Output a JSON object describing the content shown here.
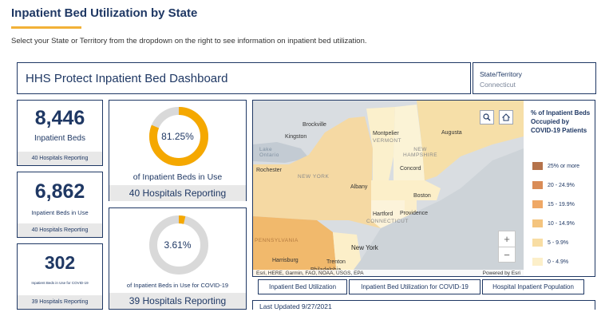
{
  "page": {
    "title": "Inpatient Bed Utilization by State",
    "subtitle": "Select your State or Territory from the dropdown on the right to see information on inpatient bed utilization."
  },
  "header": {
    "dashboard_title": "HHS Protect Inpatient Bed Dashboard",
    "state_label": "State/Territory",
    "state_value": "Connecticut"
  },
  "stats": [
    {
      "value": "8,446",
      "label": "Inpatient Beds",
      "footer": "40 Hospitals Reporting"
    },
    {
      "value": "6,862",
      "label": "Inpatient Beds in Use",
      "footer": "40 Hospitals Reporting"
    },
    {
      "value": "302",
      "label": "Inpatient Beds in Use for COVID-19",
      "footer": "39 Hospitals Reporting"
    }
  ],
  "donuts": [
    {
      "percent_text": "81.25%",
      "fraction": 0.8125,
      "label": "of Inpatient Beds in Use",
      "footer": "40 Hospitals Reporting",
      "fill_color": "#f5a800",
      "track_color": "#d9d9d9"
    },
    {
      "percent_text": "3.61%",
      "fraction": 0.0361,
      "label": "of Inpatient Beds in Use for COVID-19",
      "footer": "39 Hospitals Reporting",
      "fill_color": "#f5a800",
      "track_color": "#d9d9d9"
    }
  ],
  "map": {
    "cities": {
      "brockville": "Brockville",
      "kingston": "Kingston",
      "lake_ontario": "Lake\nOntario",
      "rochester": "Rochester",
      "new_york_state": "NEW YORK",
      "albany": "Albany",
      "montpelier": "Montpelier",
      "vermont": "VERMONT",
      "new_hampshire": "NEW\nHAMPSHIRE",
      "concord": "Concord",
      "augusta": "Augusta",
      "boston": "Boston",
      "hartford": "Hartford",
      "providence": "Providence",
      "connecticut": "CONNECTICUT",
      "new_york_city": "New York",
      "pennsylvania": "PENNSYLVANIA",
      "harrisburg": "Harrisburg",
      "trenton": "Trenton",
      "philadelphia": "Philadelphia"
    },
    "attribution_left": "Esri, HERE, Garmin, FAO, NOAA, USGS, EPA",
    "attribution_right": "Powered by Esri",
    "zoom_in": "+",
    "zoom_out": "−",
    "search_icon": "search-icon",
    "home_icon": "home-icon",
    "legend": {
      "title": "% of Inpatient Beds Occupied by COVID-19 Patients",
      "items": [
        {
          "label": "25% or more",
          "color": "#b5734b"
        },
        {
          "label": "20 - 24.9%",
          "color": "#d98c57"
        },
        {
          "label": "15 - 19.9%",
          "color": "#efa866"
        },
        {
          "label": "10 - 14.9%",
          "color": "#f4c47e"
        },
        {
          "label": "5 - 9.9%",
          "color": "#f8dda3"
        },
        {
          "label": "0 - 4.9%",
          "color": "#fcefc9"
        }
      ]
    }
  },
  "tabs": [
    {
      "label": "Inpatient Bed Utilization"
    },
    {
      "label": "Inpatient Bed Utilization for COVID-19"
    },
    {
      "label": "Hospital Inpatient Population"
    }
  ],
  "last_updated": "Last Updated 9/27/2021"
}
